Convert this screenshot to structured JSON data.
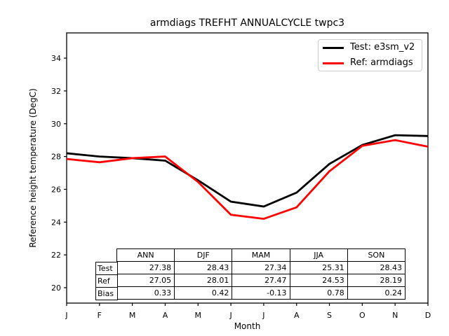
{
  "title": "armdiags TREFHT ANNUALCYCLE twpc3",
  "axes": {
    "xlabel": "Month",
    "ylabel": "Reference height temperature (DegC)"
  },
  "legend": {
    "items": [
      {
        "label": "Test: e3sm_v2",
        "color": "#000000"
      },
      {
        "label": "Ref: armdiags",
        "color": "#ff0000"
      }
    ]
  },
  "chart_data": {
    "type": "line",
    "title": "armdiags TREFHT ANNUALCYCLE twpc3",
    "xlabel": "Month",
    "ylabel": "Reference height temperature (DegC)",
    "x": [
      "J",
      "F",
      "M",
      "A",
      "M",
      "J",
      "J",
      "A",
      "S",
      "O",
      "N",
      "D"
    ],
    "series": [
      {
        "name": "Test: e3sm_v2",
        "color": "#000000",
        "values": [
          28.2,
          28.0,
          27.9,
          27.75,
          26.55,
          25.25,
          24.95,
          25.8,
          27.55,
          28.7,
          29.3,
          29.25
        ]
      },
      {
        "name": "Ref: armdiags",
        "color": "#ff0000",
        "values": [
          27.85,
          27.65,
          27.9,
          28.0,
          26.45,
          24.45,
          24.2,
          24.9,
          27.1,
          28.65,
          29.0,
          28.6
        ]
      }
    ],
    "ylim": [
      19.06,
      35.54
    ],
    "yticks": [
      20,
      22,
      24,
      26,
      28,
      30,
      32,
      34
    ],
    "grid": false,
    "legend_position": "upper right",
    "stats_table": {
      "columns": [
        "ANN",
        "DJF",
        "MAM",
        "JJA",
        "SON"
      ],
      "rows": [
        {
          "label": "Test",
          "values": [
            "27.38",
            "28.43",
            "27.34",
            "25.31",
            "28.43"
          ]
        },
        {
          "label": "Ref",
          "values": [
            "27.05",
            "28.01",
            "27.47",
            "24.53",
            "28.19"
          ]
        },
        {
          "label": "Bias",
          "values": [
            "0.33",
            "0.42",
            "-0.13",
            "0.78",
            "0.24"
          ]
        }
      ]
    }
  }
}
